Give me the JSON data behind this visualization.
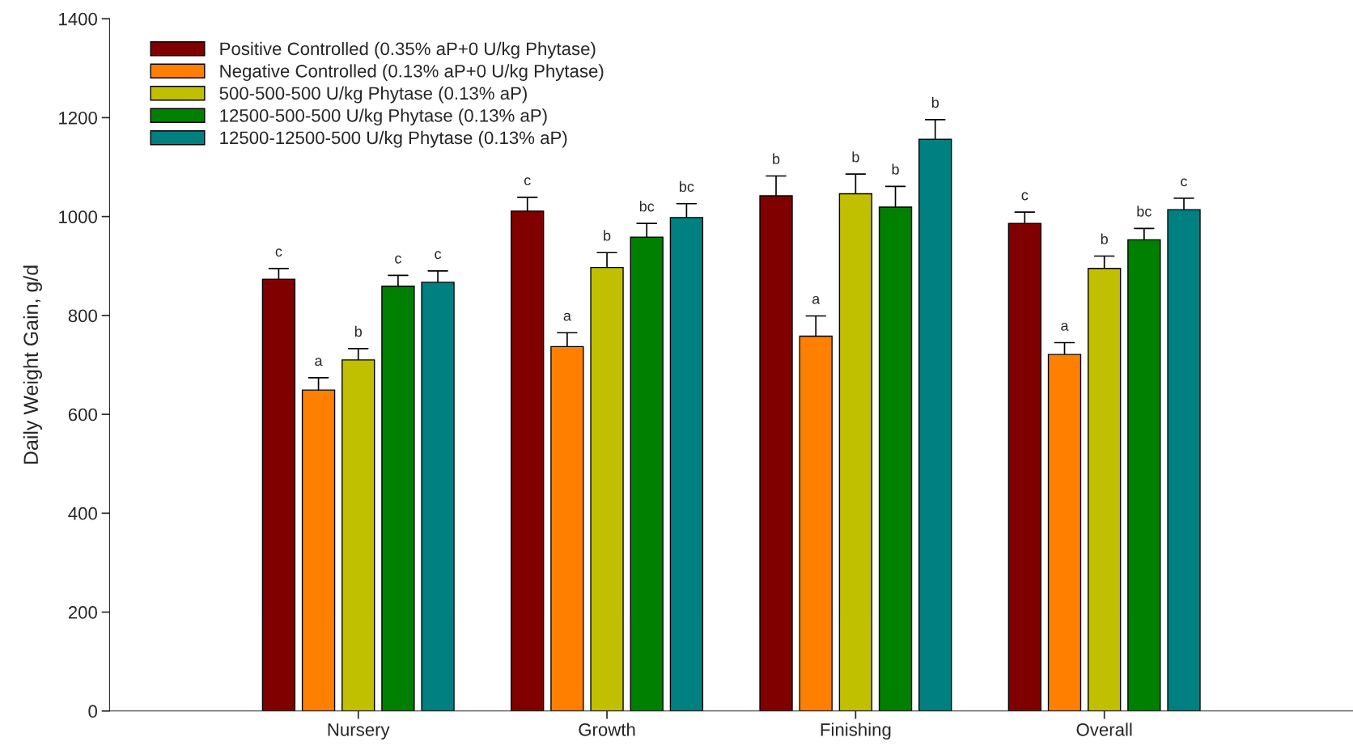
{
  "chart_data": {
    "type": "bar",
    "ylabel": "Daily Weight Gain, g/d",
    "categories": [
      "Nursery",
      "Growth",
      "Finishing",
      "Overall"
    ],
    "ylim": [
      0,
      1400
    ],
    "yticks": [
      0,
      200,
      400,
      600,
      800,
      1000,
      1200,
      1400
    ],
    "grid": false,
    "legend": "top left",
    "series": [
      {
        "name": "Positive Controlled (0.35% aP+0 U/kg Phytase)",
        "color": "#800000",
        "values": [
          873,
          1011,
          1042,
          986
        ],
        "errors": [
          [
            873,
            895
          ],
          [
            1011,
            1039
          ],
          [
            1042,
            1082
          ],
          [
            986,
            1009
          ]
        ],
        "value_labels": [
          "c",
          "c",
          "b",
          "c"
        ]
      },
      {
        "name": "Negative Controlled (0.13% aP+0 U/kg Phytase)",
        "color": "#ff8000",
        "values": [
          649,
          737,
          758,
          721
        ],
        "errors": [
          [
            649,
            674
          ],
          [
            737,
            765
          ],
          [
            758,
            799
          ],
          [
            721,
            745
          ]
        ],
        "value_labels": [
          "a",
          "a",
          "a",
          "a"
        ]
      },
      {
        "name": "500-500-500 U/kg Phytase (0.13% aP)",
        "color": "#c0c000",
        "values": [
          710,
          897,
          1046,
          895
        ],
        "errors": [
          [
            710,
            733
          ],
          [
            897,
            927
          ],
          [
            1046,
            1086
          ],
          [
            895,
            920
          ]
        ],
        "value_labels": [
          "b",
          "b",
          "b",
          "b"
        ]
      },
      {
        "name": "12500-500-500 U/kg Phytase (0.13% aP)",
        "color": "#008000",
        "values": [
          859,
          958,
          1019,
          953
        ],
        "errors": [
          [
            859,
            881
          ],
          [
            958,
            986
          ],
          [
            1019,
            1061
          ],
          [
            953,
            976
          ]
        ],
        "value_labels": [
          "c",
          "bc",
          "b",
          "bc"
        ]
      },
      {
        "name": "12500-12500-500 U/kg Phytase (0.13% aP)",
        "color": "#008080",
        "values": [
          867,
          998,
          1156,
          1014
        ],
        "errors": [
          [
            867,
            890
          ],
          [
            998,
            1026
          ],
          [
            1156,
            1196
          ],
          [
            1014,
            1037
          ]
        ],
        "value_labels": [
          "c",
          "bc",
          "b",
          "c"
        ]
      }
    ]
  }
}
